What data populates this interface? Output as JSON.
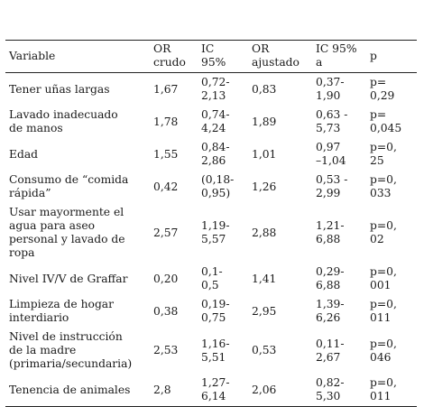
{
  "headers": [
    "Variable",
    "OR\ncrudo",
    "IC\n95%",
    "OR\najustado",
    "IC 95%\na",
    "p"
  ],
  "rows": [
    [
      "Tener uñas largas",
      "1,67",
      "0,72-\n2,13",
      "0,83",
      "0,37-\n1,90",
      "p=\n0,29"
    ],
    [
      "Lavado inadecuado\nde manos",
      "1,78",
      "0,74-\n4,24",
      "1,89",
      "0,63 -\n5,73",
      "p=\n0,045"
    ],
    [
      "Edad",
      "1,55",
      "0,84-\n2,86",
      "1,01",
      "0,97\n–1,04",
      "p=0,\n25"
    ],
    [
      "Consumo de “comida\nrápida”",
      "0,42",
      "(0,18-\n0,95)",
      "1,26",
      "0,53 -\n2,99",
      "p=0,\n033"
    ],
    [
      "Usar mayormente el\nagua para aseo\npersonal y lavado de\nropa",
      "2,57",
      "1,19-\n5,57",
      "2,88",
      "1,21-\n6,88",
      "p=0,\n02"
    ],
    [
      "Nivel IV/V de Graffar",
      "0,20",
      "0,1-\n0,5",
      "1,41",
      "0,29-\n6,88",
      "p=0,\n001"
    ],
    [
      "Limpieza de hogar\ninterdiario",
      "0,38",
      "0,19-\n0,75",
      "2,95",
      "1,39-\n6,26",
      "p=0,\n011"
    ],
    [
      "Nivel de instrucción\nde la madre\n(primaria/secundaria)",
      "2,53",
      "1,16-\n5,51",
      "0,53",
      "0,11-\n2,67",
      "p=0,\n046"
    ],
    [
      "Tenencia de animales",
      "2,8",
      "1,27-\n6,14",
      "2,06",
      "0,82-\n5,30",
      "p=0,\n011"
    ]
  ]
}
